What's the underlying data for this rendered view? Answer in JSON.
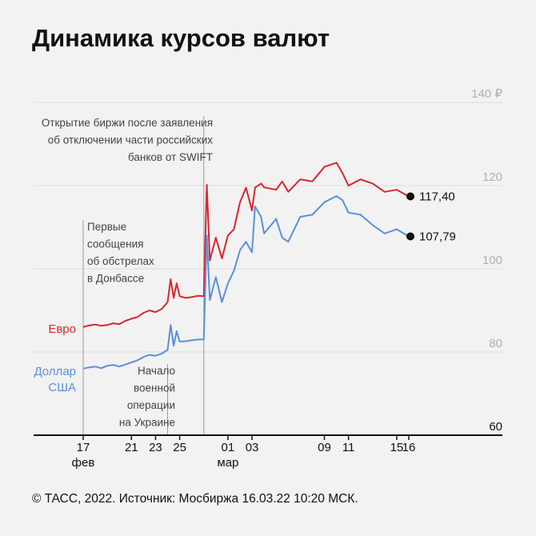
{
  "title": "Динамика курсов валют",
  "source": "© ТАСС, 2022. Источник: Мосбиржа 16.03.22 10:20 МСК.",
  "colors": {
    "eur": "#d9262e",
    "usd": "#5b8fdc",
    "grid": "#dcdcdc",
    "axis": "#111111",
    "marker": "#999999",
    "background": "#f2f2f2"
  },
  "chart_data": {
    "type": "line",
    "title": "Динамика курсов валют",
    "y_unit": "₽",
    "ylim": [
      60,
      140
    ],
    "y_ticks": [
      {
        "value": 140,
        "label": "140 ₽"
      },
      {
        "value": 120,
        "label": "120"
      },
      {
        "value": 100,
        "label": "100"
      },
      {
        "value": 80,
        "label": "80"
      },
      {
        "value": 60,
        "label": "60"
      }
    ],
    "x_range": [
      "2022-02-17",
      "2022-03-16"
    ],
    "x_ticks": [
      {
        "date": "2022-02-17",
        "label": "17",
        "sublabel": "фев"
      },
      {
        "date": "2022-02-21",
        "label": "21"
      },
      {
        "date": "2022-02-23",
        "label": "23"
      },
      {
        "date": "2022-02-25",
        "label": "25"
      },
      {
        "date": "2022-03-01",
        "label": "01",
        "sublabel": "мар"
      },
      {
        "date": "2022-03-03",
        "label": "03"
      },
      {
        "date": "2022-03-09",
        "label": "09"
      },
      {
        "date": "2022-03-11",
        "label": "11"
      },
      {
        "date": "2022-03-15",
        "label": "15"
      },
      {
        "date": "2022-03-16",
        "label": "16"
      }
    ],
    "grid": true,
    "series": [
      {
        "name": "Евро",
        "end_label": "117,40",
        "points": [
          [
            "2022-02-17",
            86.0
          ],
          [
            "2022-02-17T12:00",
            86.4
          ],
          [
            "2022-02-18",
            86.6
          ],
          [
            "2022-02-18T12:00",
            86.3
          ],
          [
            "2022-02-19",
            86.5
          ],
          [
            "2022-02-19T12:00",
            86.9
          ],
          [
            "2022-02-20",
            86.7
          ],
          [
            "2022-02-20T12:00",
            87.5
          ],
          [
            "2022-02-21",
            88.0
          ],
          [
            "2022-02-21T12:00",
            88.4
          ],
          [
            "2022-02-22",
            89.4
          ],
          [
            "2022-02-22T12:00",
            90.0
          ],
          [
            "2022-02-23",
            89.6
          ],
          [
            "2022-02-23T12:00",
            90.3
          ],
          [
            "2022-02-24",
            92.0
          ],
          [
            "2022-02-24T06:00",
            97.5
          ],
          [
            "2022-02-24T12:00",
            93.0
          ],
          [
            "2022-02-24T18:00",
            96.5
          ],
          [
            "2022-02-25",
            93.4
          ],
          [
            "2022-02-25T12:00",
            93.0
          ],
          [
            "2022-02-26",
            93.2
          ],
          [
            "2022-02-26T12:00",
            93.5
          ],
          [
            "2022-02-27",
            93.4
          ],
          [
            "2022-02-27T06:00",
            120.2
          ],
          [
            "2022-02-27T12:00",
            102.0
          ],
          [
            "2022-02-28",
            107.5
          ],
          [
            "2022-02-28T12:00",
            102.5
          ],
          [
            "2022-03-01",
            108.0
          ],
          [
            "2022-03-01T12:00",
            109.5
          ],
          [
            "2022-03-02",
            116.0
          ],
          [
            "2022-03-02T12:00",
            119.5
          ],
          [
            "2022-03-03",
            114.0
          ],
          [
            "2022-03-03T06:00",
            119.5
          ],
          [
            "2022-03-03T18:00",
            120.5
          ],
          [
            "2022-03-04",
            119.6
          ],
          [
            "2022-03-05",
            119.0
          ],
          [
            "2022-03-05T12:00",
            121.0
          ],
          [
            "2022-03-06",
            118.5
          ],
          [
            "2022-03-07",
            121.5
          ],
          [
            "2022-03-08",
            121.0
          ],
          [
            "2022-03-09",
            124.5
          ],
          [
            "2022-03-10",
            125.5
          ],
          [
            "2022-03-10T12:00",
            123.0
          ],
          [
            "2022-03-11",
            120.0
          ],
          [
            "2022-03-12",
            121.5
          ],
          [
            "2022-03-13",
            120.5
          ],
          [
            "2022-03-14",
            118.5
          ],
          [
            "2022-03-15",
            119.0
          ],
          [
            "2022-03-16",
            117.4
          ]
        ]
      },
      {
        "name": "Доллар\nСША",
        "end_label": "107,79",
        "points": [
          [
            "2022-02-17",
            76.0
          ],
          [
            "2022-02-17T12:00",
            76.3
          ],
          [
            "2022-02-18",
            76.5
          ],
          [
            "2022-02-18T12:00",
            76.1
          ],
          [
            "2022-02-19",
            76.7
          ],
          [
            "2022-02-19T12:00",
            76.9
          ],
          [
            "2022-02-20",
            76.5
          ],
          [
            "2022-02-20T12:00",
            77.0
          ],
          [
            "2022-02-21",
            77.5
          ],
          [
            "2022-02-21T12:00",
            78.0
          ],
          [
            "2022-02-22",
            78.8
          ],
          [
            "2022-02-22T12:00",
            79.3
          ],
          [
            "2022-02-23",
            79.1
          ],
          [
            "2022-02-23T12:00",
            79.6
          ],
          [
            "2022-02-24",
            80.5
          ],
          [
            "2022-02-24T06:00",
            86.5
          ],
          [
            "2022-02-24T12:00",
            81.5
          ],
          [
            "2022-02-24T18:00",
            85.0
          ],
          [
            "2022-02-25",
            82.5
          ],
          [
            "2022-02-25T12:00",
            82.6
          ],
          [
            "2022-02-26",
            82.8
          ],
          [
            "2022-02-26T12:00",
            83.0
          ],
          [
            "2022-02-27",
            83.0
          ],
          [
            "2022-02-27T06:00",
            108.0
          ],
          [
            "2022-02-27T12:00",
            92.5
          ],
          [
            "2022-02-28",
            98.0
          ],
          [
            "2022-02-28T12:00",
            92.0
          ],
          [
            "2022-03-01",
            96.5
          ],
          [
            "2022-03-01T12:00",
            99.5
          ],
          [
            "2022-03-02",
            104.5
          ],
          [
            "2022-03-02T12:00",
            106.5
          ],
          [
            "2022-03-03",
            104.0
          ],
          [
            "2022-03-03T06:00",
            115.0
          ],
          [
            "2022-03-03T18:00",
            112.5
          ],
          [
            "2022-03-04",
            108.5
          ],
          [
            "2022-03-05",
            112.0
          ],
          [
            "2022-03-05T12:00",
            107.5
          ],
          [
            "2022-03-06",
            106.5
          ],
          [
            "2022-03-07",
            112.5
          ],
          [
            "2022-03-08",
            113.0
          ],
          [
            "2022-03-09",
            116.0
          ],
          [
            "2022-03-10",
            117.5
          ],
          [
            "2022-03-10T12:00",
            116.5
          ],
          [
            "2022-03-11",
            113.5
          ],
          [
            "2022-03-12",
            113.0
          ],
          [
            "2022-03-13",
            110.5
          ],
          [
            "2022-03-14",
            108.5
          ],
          [
            "2022-03-15",
            109.5
          ],
          [
            "2022-03-16",
            107.79
          ]
        ]
      }
    ],
    "annotations": [
      {
        "date": "2022-02-17",
        "lines": [
          "Первые",
          "сообщения",
          "об обстрелах",
          "в Донбассе"
        ]
      },
      {
        "date": "2022-02-24",
        "lines": [
          "Начало",
          "военной",
          "операции",
          "на Украине"
        ]
      },
      {
        "date": "2022-02-27",
        "lines": [
          "Открытие биржи после заявления",
          "об отключении части российских",
          "банков от SWIFT"
        ]
      }
    ]
  }
}
